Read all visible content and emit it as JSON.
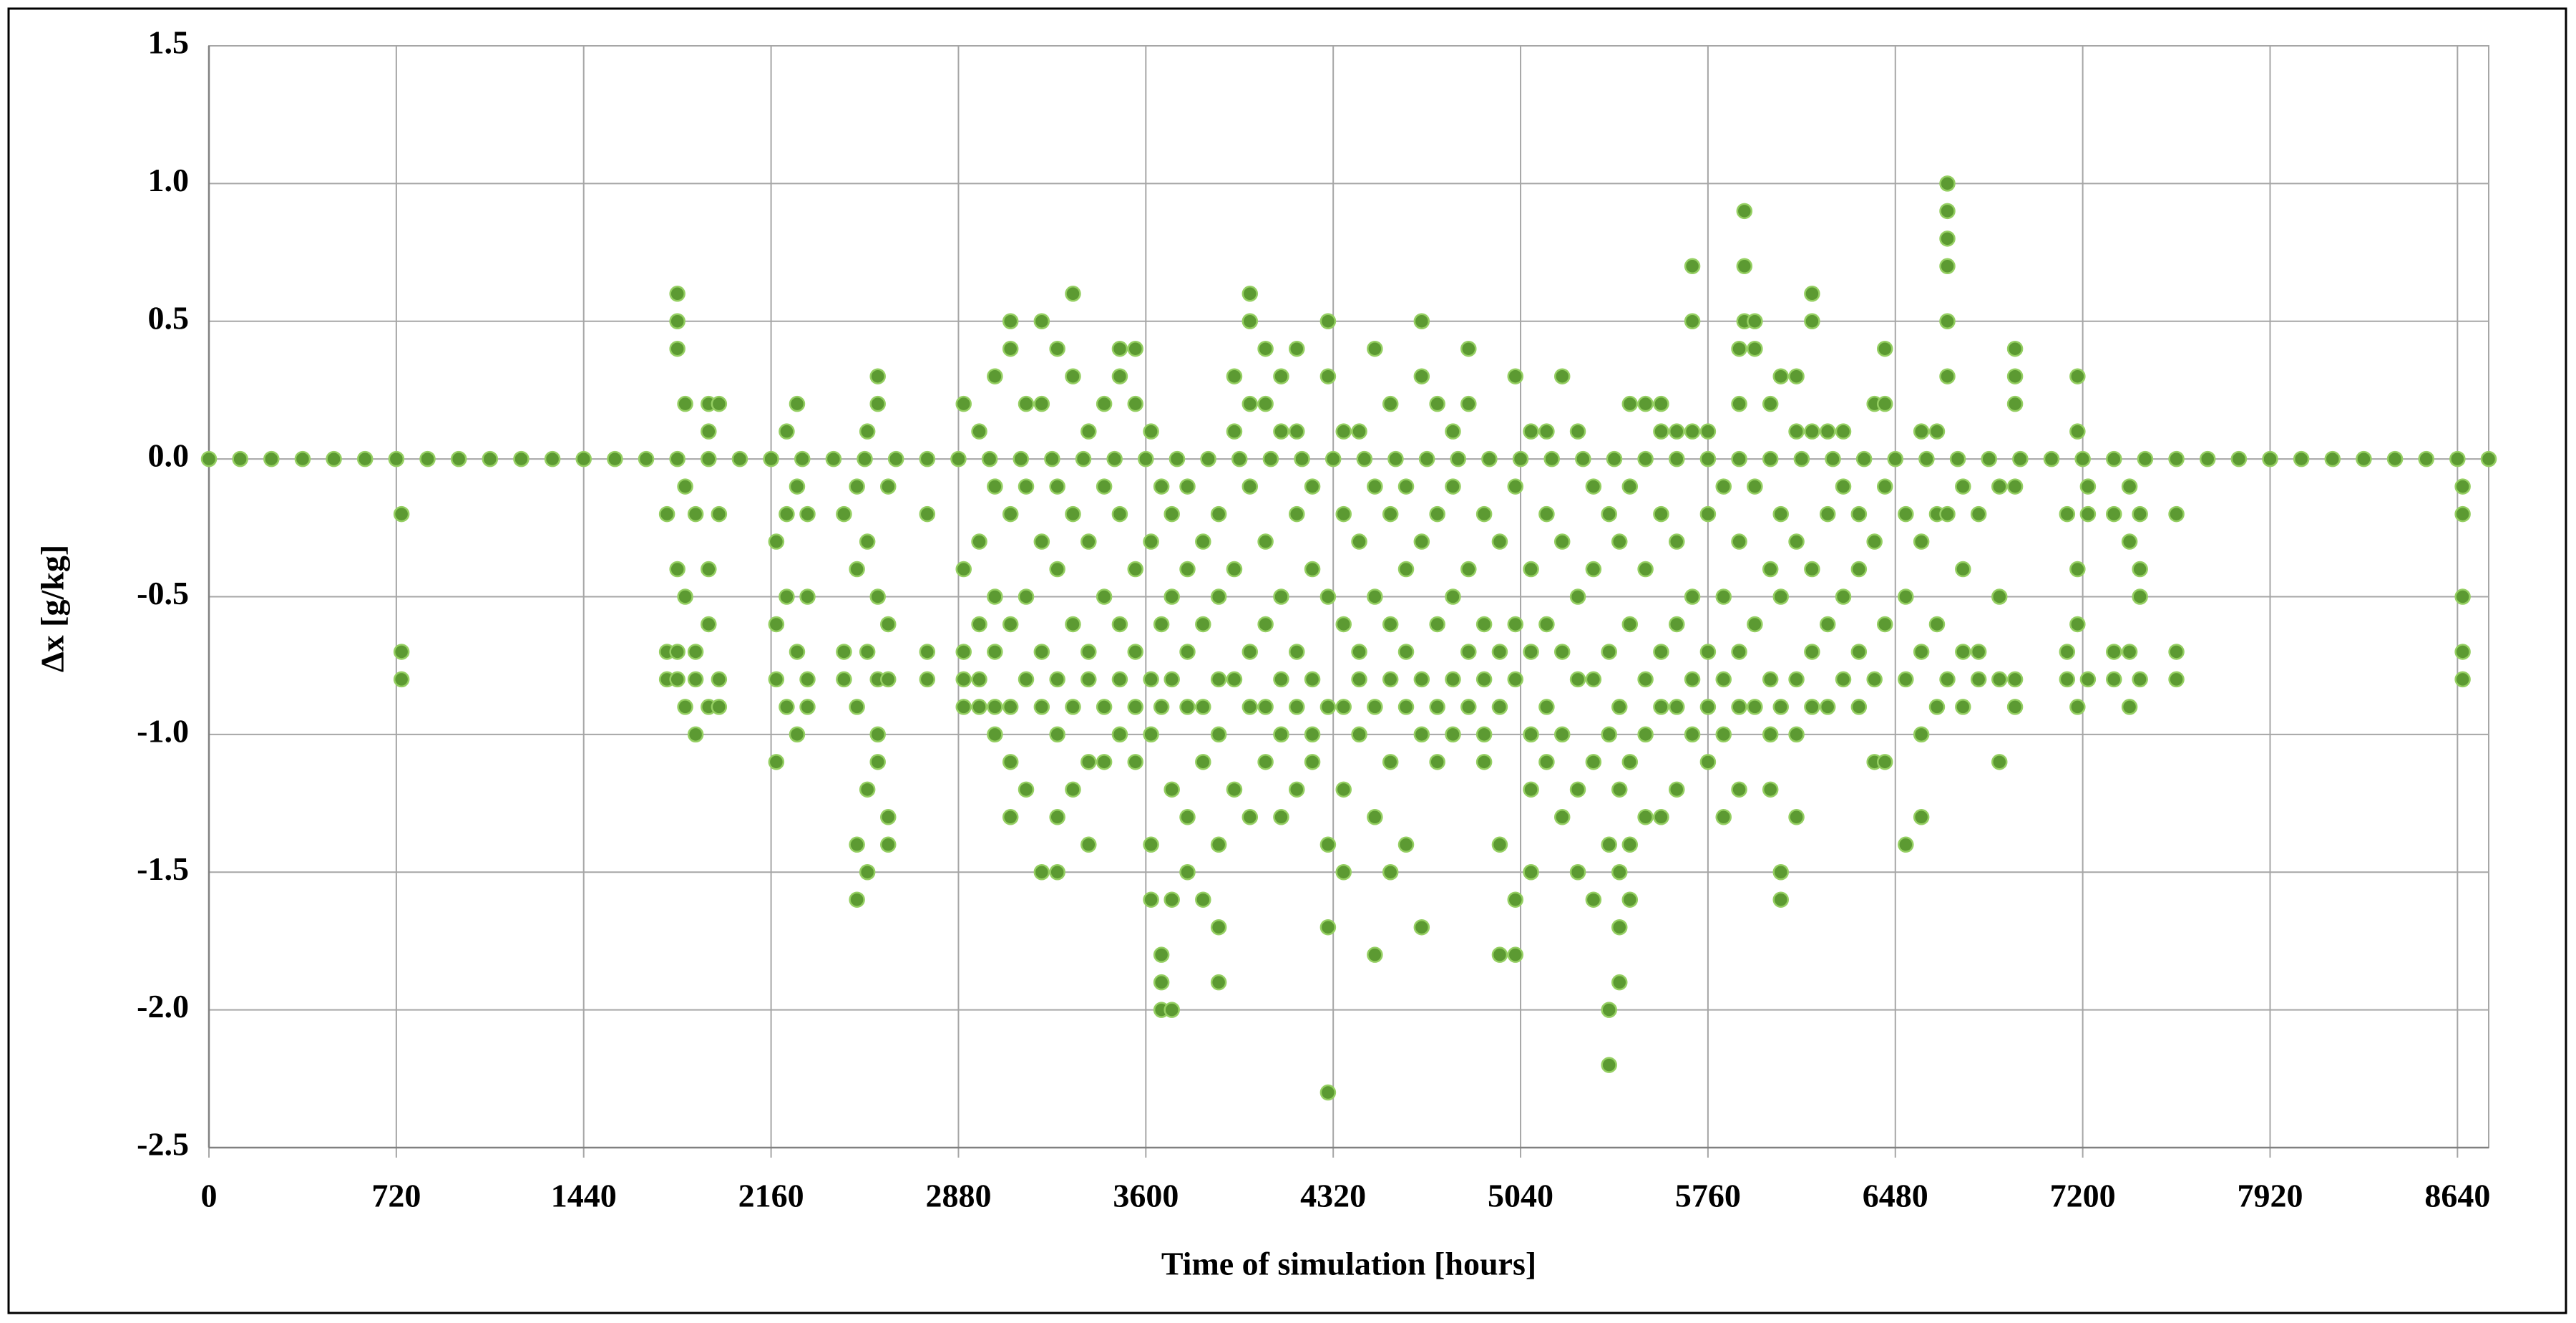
{
  "chart_data": {
    "type": "scatter",
    "x_label": "Time of simulation [hours]",
    "y_label": "Δx [g/kg]",
    "xlim": [
      0,
      8760
    ],
    "ylim": [
      -2.5,
      1.5
    ],
    "xticks": [
      0,
      720,
      1440,
      2160,
      2880,
      3600,
      4320,
      5040,
      5760,
      6480,
      7200,
      7920,
      8640
    ],
    "yticks": [
      1.5,
      {
        "value": 1,
        "label": "1.0"
      },
      0.5,
      {
        "value": 0,
        "label": "0.0"
      },
      -0.5,
      {
        "value": -1,
        "label": "-1.0"
      },
      -1.5,
      {
        "value": -2,
        "label": "-2.0"
      },
      -2.5
    ],
    "grid": true,
    "color": "#5c9a32",
    "x": [
      0,
      120,
      240,
      360,
      480,
      600,
      720,
      840,
      960,
      1080,
      1200,
      1320,
      1440,
      1560,
      1680,
      1800,
      1920,
      2040,
      2160,
      2280,
      2400,
      2520,
      2640,
      2760,
      2880,
      3000,
      3120,
      3240,
      3360,
      3480,
      3600,
      3720,
      3840,
      3960,
      4080,
      4200,
      4320,
      4440,
      4560,
      4680,
      4800,
      4920,
      5040,
      5160,
      5280,
      5400,
      5520,
      5640,
      5760,
      5880,
      6000,
      6120,
      6240,
      6360,
      6480,
      6600,
      6720,
      6840,
      6960,
      7080,
      7200,
      7320,
      7440,
      7560,
      7680,
      7800,
      7920,
      8040,
      8160,
      8280,
      8400,
      8520,
      8640,
      8760,
      740,
      740,
      740,
      1760,
      1760,
      1760,
      1800,
      1800,
      1800,
      1800,
      1800,
      1800,
      1830,
      1830,
      1830,
      1830,
      1870,
      1870,
      1870,
      1870,
      1920,
      1920,
      1920,
      1920,
      1920,
      1960,
      1960,
      1960,
      1960,
      2180,
      2180,
      2180,
      2180,
      2220,
      2220,
      2220,
      2220,
      2260,
      2260,
      2260,
      2260,
      2300,
      2300,
      2300,
      2300,
      2440,
      2440,
      2440,
      2490,
      2490,
      2490,
      2490,
      2490,
      2530,
      2530,
      2530,
      2530,
      2530,
      2570,
      2570,
      2570,
      2570,
      2570,
      2570,
      2610,
      2610,
      2610,
      2610,
      2610,
      2760,
      2760,
      2760,
      2900,
      2900,
      2900,
      2900,
      2900,
      2960,
      2960,
      2960,
      2960,
      2960,
      3020,
      3020,
      3020,
      3020,
      3020,
      3020,
      3080,
      3080,
      3080,
      3080,
      3080,
      3080,
      3080,
      3140,
      3140,
      3140,
      3140,
      3140,
      3200,
      3200,
      3200,
      3200,
      3200,
      3200,
      3260,
      3260,
      3260,
      3260,
      3260,
      3260,
      3260,
      3320,
      3320,
      3320,
      3320,
      3320,
      3320,
      3380,
      3380,
      3380,
      3380,
      3380,
      3380,
      3440,
      3440,
      3440,
      3440,
      3440,
      3500,
      3500,
      3500,
      3500,
      3500,
      3500,
      3560,
      3560,
      3560,
      3560,
      3560,
      3560,
      3620,
      3620,
      3620,
      3620,
      3620,
      3620,
      3660,
      3660,
      3660,
      3660,
      3660,
      3660,
      3700,
      3700,
      3700,
      3700,
      3700,
      3700,
      3760,
      3760,
      3760,
      3760,
      3760,
      3760,
      3820,
      3820,
      3820,
      3820,
      3820,
      3880,
      3880,
      3880,
      3880,
      3880,
      3880,
      3880,
      3940,
      3940,
      3940,
      3940,
      3940,
      4000,
      4000,
      4000,
      4000,
      4000,
      4000,
      4000,
      4060,
      4060,
      4060,
      4060,
      4060,
      4060,
      4120,
      4120,
      4120,
      4120,
      4120,
      4120,
      4180,
      4180,
      4180,
      4180,
      4180,
      4180,
      4240,
      4240,
      4240,
      4240,
      4240,
      4300,
      4300,
      4300,
      4300,
      4300,
      4300,
      4300,
      4360,
      4360,
      4360,
      4360,
      4360,
      4360,
      4420,
      4420,
      4420,
      4420,
      4420,
      4480,
      4480,
      4480,
      4480,
      4480,
      4480,
      4540,
      4540,
      4540,
      4540,
      4540,
      4540,
      4600,
      4600,
      4600,
      4600,
      4600,
      4660,
      4660,
      4660,
      4660,
      4660,
      4660,
      4720,
      4720,
      4720,
      4720,
      4720,
      4780,
      4780,
      4780,
      4780,
      4780,
      4840,
      4840,
      4840,
      4840,
      4840,
      4900,
      4900,
      4900,
      4900,
      4900,
      4960,
      4960,
      4960,
      4960,
      4960,
      5020,
      5020,
      5020,
      5020,
      5020,
      5020,
      5080,
      5080,
      5080,
      5080,
      5080,
      5080,
      5140,
      5140,
      5140,
      5140,
      5140,
      5200,
      5200,
      5200,
      5200,
      5200,
      5260,
      5260,
      5260,
      5260,
      5260,
      5320,
      5320,
      5320,
      5320,
      5320,
      5380,
      5380,
      5380,
      5380,
      5380,
      5380,
      5420,
      5420,
      5420,
      5420,
      5420,
      5420,
      5460,
      5460,
      5460,
      5460,
      5460,
      5460,
      5520,
      5520,
      5520,
      5520,
      5520,
      5580,
      5580,
      5580,
      5580,
      5580,
      5580,
      5640,
      5640,
      5640,
      5640,
      5640,
      5700,
      5700,
      5700,
      5700,
      5700,
      5700,
      5760,
      5760,
      5760,
      5760,
      5760,
      5820,
      5820,
      5820,
      5820,
      5820,
      5880,
      5880,
      5880,
      5880,
      5880,
      5880,
      5900,
      5900,
      5900,
      5940,
      5940,
      5940,
      5940,
      5940,
      6000,
      6000,
      6000,
      6000,
      6000,
      6040,
      6040,
      6040,
      6040,
      6040,
      6040,
      6100,
      6100,
      6100,
      6100,
      6100,
      6100,
      6160,
      6160,
      6160,
      6160,
      6160,
      6160,
      6220,
      6220,
      6220,
      6220,
      6280,
      6280,
      6280,
      6280,
      6340,
      6340,
      6340,
      6340,
      6400,
      6400,
      6400,
      6400,
      6440,
      6440,
      6440,
      6440,
      6440,
      6520,
      6520,
      6520,
      6520,
      6580,
      6580,
      6580,
      6580,
      6580,
      6640,
      6640,
      6640,
      6640,
      6680,
      6680,
      6680,
      6680,
      6680,
      6680,
      6680,
      6680,
      6740,
      6740,
      6740,
      6740,
      6800,
      6800,
      6800,
      6880,
      6880,
      6880,
      6880,
      6940,
      6940,
      6940,
      6940,
      6940,
      6940,
      7140,
      7140,
      7140,
      7180,
      7180,
      7180,
      7180,
      7180,
      7220,
      7220,
      7220,
      7320,
      7320,
      7320,
      7380,
      7380,
      7380,
      7380,
      7420,
      7420,
      7420,
      7420,
      7560,
      7560,
      7560,
      8660,
      8660,
      8660,
      8660,
      8660
    ],
    "values": [
      0,
      0,
      0,
      0,
      0,
      0,
      0,
      0,
      0,
      0,
      0,
      0,
      0,
      0,
      0,
      0,
      0,
      0,
      0,
      0,
      0,
      0,
      0,
      0,
      0,
      0,
      0,
      0,
      0,
      0,
      0,
      0,
      0,
      0,
      0,
      0,
      0,
      0,
      0,
      0,
      0,
      0,
      0,
      0,
      0,
      0,
      0,
      0,
      0,
      0,
      0,
      0,
      0,
      0,
      0,
      0,
      0,
      0,
      0,
      0,
      0,
      0,
      0,
      0,
      0,
      0,
      0,
      0,
      0,
      0,
      0,
      0,
      0,
      0,
      -0.2,
      -0.7,
      -0.8,
      -0.2,
      -0.7,
      -0.8,
      0.6,
      0.5,
      0.4,
      -0.4,
      -0.7,
      -0.8,
      0.2,
      -0.1,
      -0.5,
      -0.9,
      -0.2,
      -0.7,
      -0.8,
      -1.0,
      0.2,
      0.1,
      -0.4,
      -0.6,
      -0.9,
      0.2,
      -0.2,
      -0.8,
      -0.9,
      -0.3,
      -0.6,
      -0.8,
      -1.1,
      0.1,
      -0.2,
      -0.5,
      -0.9,
      0.2,
      -0.1,
      -0.7,
      -1.0,
      -0.2,
      -0.5,
      -0.8,
      -0.9,
      -0.2,
      -0.7,
      -0.8,
      -0.1,
      -0.4,
      -0.9,
      -1.4,
      -1.6,
      0.1,
      -0.3,
      -0.7,
      -1.2,
      -1.5,
      0.3,
      0.2,
      -0.5,
      -0.8,
      -1.0,
      -1.1,
      -0.1,
      -0.6,
      -0.8,
      -1.3,
      -1.4,
      -0.2,
      -0.7,
      -0.8,
      0.2,
      -0.4,
      -0.7,
      -0.8,
      -0.9,
      0.1,
      -0.3,
      -0.6,
      -0.8,
      -0.9,
      0.3,
      -0.1,
      -0.5,
      -0.7,
      -0.9,
      -1.0,
      0.5,
      0.4,
      -0.2,
      -0.6,
      -0.9,
      -1.1,
      -1.3,
      0.2,
      -0.1,
      -0.5,
      -0.8,
      -1.2,
      0.5,
      0.2,
      -0.3,
      -0.7,
      -0.9,
      -1.5,
      0.4,
      -0.1,
      -0.4,
      -0.8,
      -1.0,
      -1.3,
      -1.5,
      0.6,
      0.3,
      -0.2,
      -0.6,
      -0.9,
      -1.2,
      0.1,
      -0.3,
      -0.7,
      -0.8,
      -1.1,
      -1.4,
      0.2,
      -0.1,
      -0.5,
      -0.9,
      -1.1,
      0.4,
      0.3,
      -0.2,
      -0.6,
      -0.8,
      -1.0,
      0.4,
      0.2,
      -0.4,
      -0.7,
      -0.9,
      -1.1,
      0.1,
      -0.3,
      -0.8,
      -1.0,
      -1.4,
      -1.6,
      -0.1,
      -0.6,
      -0.9,
      -1.8,
      -1.9,
      -2.0,
      -0.2,
      -0.5,
      -0.8,
      -1.2,
      -1.6,
      -2.0,
      -0.1,
      -0.4,
      -0.7,
      -0.9,
      -1.3,
      -1.5,
      -0.3,
      -0.6,
      -0.9,
      -1.1,
      -1.6,
      -0.2,
      -0.5,
      -0.8,
      -1.0,
      -1.4,
      -1.7,
      -1.9,
      0.3,
      0.1,
      -0.4,
      -0.8,
      -1.2,
      0.6,
      0.5,
      0.2,
      -0.1,
      -0.7,
      -0.9,
      -1.3,
      0.4,
      0.2,
      -0.3,
      -0.6,
      -0.9,
      -1.1,
      0.3,
      0.1,
      -0.5,
      -0.8,
      -1.0,
      -1.3,
      0.4,
      0.1,
      -0.2,
      -0.7,
      -0.9,
      -1.2,
      -0.1,
      -0.4,
      -0.8,
      -1.0,
      -1.1,
      0.5,
      0.3,
      -0.5,
      -0.9,
      -1.4,
      -1.7,
      -2.3,
      0.1,
      -0.2,
      -0.6,
      -0.9,
      -1.2,
      -1.5,
      0.1,
      -0.3,
      -0.7,
      -0.8,
      -1.0,
      0.4,
      -0.1,
      -0.5,
      -0.9,
      -1.3,
      -1.8,
      0.2,
      -0.2,
      -0.6,
      -0.8,
      -1.1,
      -1.5,
      -0.1,
      -0.4,
      -0.7,
      -0.9,
      -1.4,
      0.5,
      0.3,
      -0.3,
      -0.8,
      -1.0,
      -1.7,
      0.2,
      -0.2,
      -0.6,
      -0.9,
      -1.1,
      0.1,
      -0.1,
      -0.5,
      -0.8,
      -1.0,
      0.4,
      0.2,
      -0.4,
      -0.7,
      -0.9,
      -0.2,
      -0.6,
      -0.8,
      -1.0,
      -1.1,
      -0.3,
      -0.7,
      -0.9,
      -1.4,
      -1.8,
      0.3,
      -0.1,
      -0.6,
      -0.8,
      -1.6,
      -1.8,
      0.1,
      -0.4,
      -0.7,
      -1.0,
      -1.2,
      -1.5,
      0.1,
      -0.2,
      -0.6,
      -0.9,
      -1.1,
      0.3,
      -0.3,
      -0.7,
      -1.0,
      -1.3,
      0.1,
      -0.5,
      -0.8,
      -1.2,
      -1.5,
      -0.1,
      -0.4,
      -0.8,
      -1.1,
      -1.6,
      -0.2,
      -0.7,
      -1.0,
      -1.4,
      -2.0,
      -2.2,
      -0.3,
      -0.9,
      -1.2,
      -1.5,
      -1.7,
      -1.9,
      0.2,
      -0.1,
      -0.6,
      -1.1,
      -1.4,
      -1.6,
      0.2,
      -0.4,
      -0.8,
      -1.0,
      -1.3,
      0.2,
      0.1,
      -0.2,
      -0.7,
      -0.9,
      -1.3,
      0.1,
      -0.3,
      -0.6,
      -0.9,
      -1.2,
      0.7,
      0.5,
      0.1,
      -0.5,
      -0.8,
      -1.0,
      0.1,
      -0.2,
      -0.7,
      -0.9,
      -1.1,
      -0.1,
      -0.5,
      -0.8,
      -1.0,
      -1.3,
      0.4,
      0.2,
      -0.3,
      -0.7,
      -0.9,
      -1.2,
      0.9,
      0.7,
      0.5,
      0.5,
      0.4,
      -0.1,
      -0.6,
      -0.9,
      0.2,
      -0.4,
      -0.8,
      -1.0,
      -1.2,
      0.3,
      -0.2,
      -0.5,
      -0.9,
      -1.5,
      -1.6,
      0.3,
      0.1,
      -0.3,
      -0.8,
      -1.0,
      -1.3,
      0.6,
      0.5,
      0.1,
      -0.4,
      -0.7,
      -0.9,
      0.1,
      -0.2,
      -0.6,
      -0.9,
      0.1,
      -0.1,
      -0.5,
      -0.8,
      -0.2,
      -0.4,
      -0.7,
      -0.9,
      0.2,
      -0.3,
      -0.8,
      -1.1,
      0.4,
      0.2,
      -0.1,
      -0.6,
      -1.1,
      -0.2,
      -0.5,
      -0.8,
      -1.4,
      0.1,
      -0.3,
      -0.7,
      -1.0,
      -1.3,
      0.1,
      -0.2,
      -0.6,
      -0.9,
      1.0,
      0.9,
      0.8,
      0.7,
      0.5,
      0.3,
      -0.2,
      -0.8,
      -0.1,
      -0.4,
      -0.7,
      -0.9,
      -0.2,
      -0.7,
      -0.8,
      -0.1,
      -0.5,
      -0.8,
      -1.1,
      0.4,
      0.3,
      0.2,
      -0.1,
      -0.8,
      -0.9,
      -0.2,
      -0.7,
      -0.8,
      0.3,
      0.1,
      -0.4,
      -0.6,
      -0.9,
      -0.1,
      -0.2,
      -0.8,
      -0.2,
      -0.7,
      -0.8,
      -0.1,
      -0.3,
      -0.7,
      -0.9,
      -0.2,
      -0.4,
      -0.5,
      -0.8,
      -0.2,
      -0.7,
      -0.8,
      -0.1,
      -0.5,
      -0.7,
      -0.8,
      -0.2
    ]
  }
}
